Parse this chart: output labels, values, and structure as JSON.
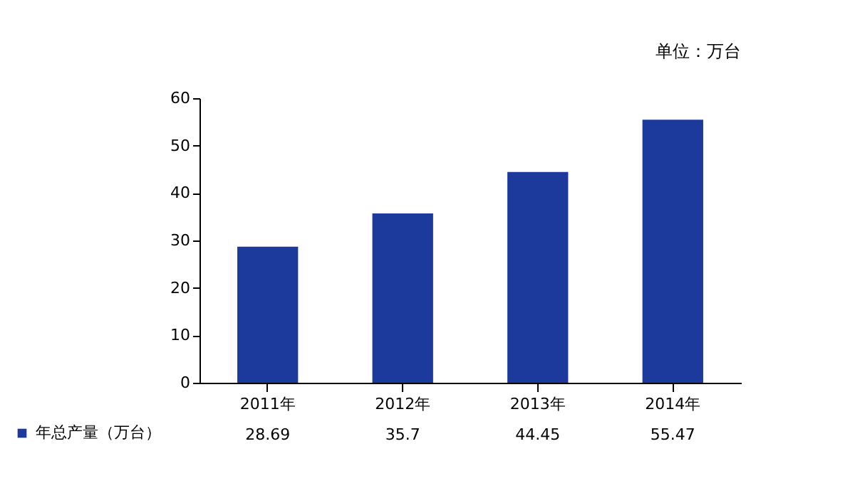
{
  "chart_data": {
    "type": "bar",
    "annotations": [
      "单位：万台"
    ],
    "categories": [
      "2011年",
      "2012年",
      "2013年",
      "2014年"
    ],
    "series": [
      {
        "name": "年总产量（万台）",
        "color": "#1b3a9c",
        "values": [
          28.69,
          35.7,
          44.45,
          55.47
        ]
      }
    ],
    "ylim": [
      0,
      60
    ],
    "yticks": [
      0,
      10,
      20,
      30,
      40,
      50,
      60
    ],
    "grid": false,
    "legend": "bottom left",
    "data_labels": true
  }
}
